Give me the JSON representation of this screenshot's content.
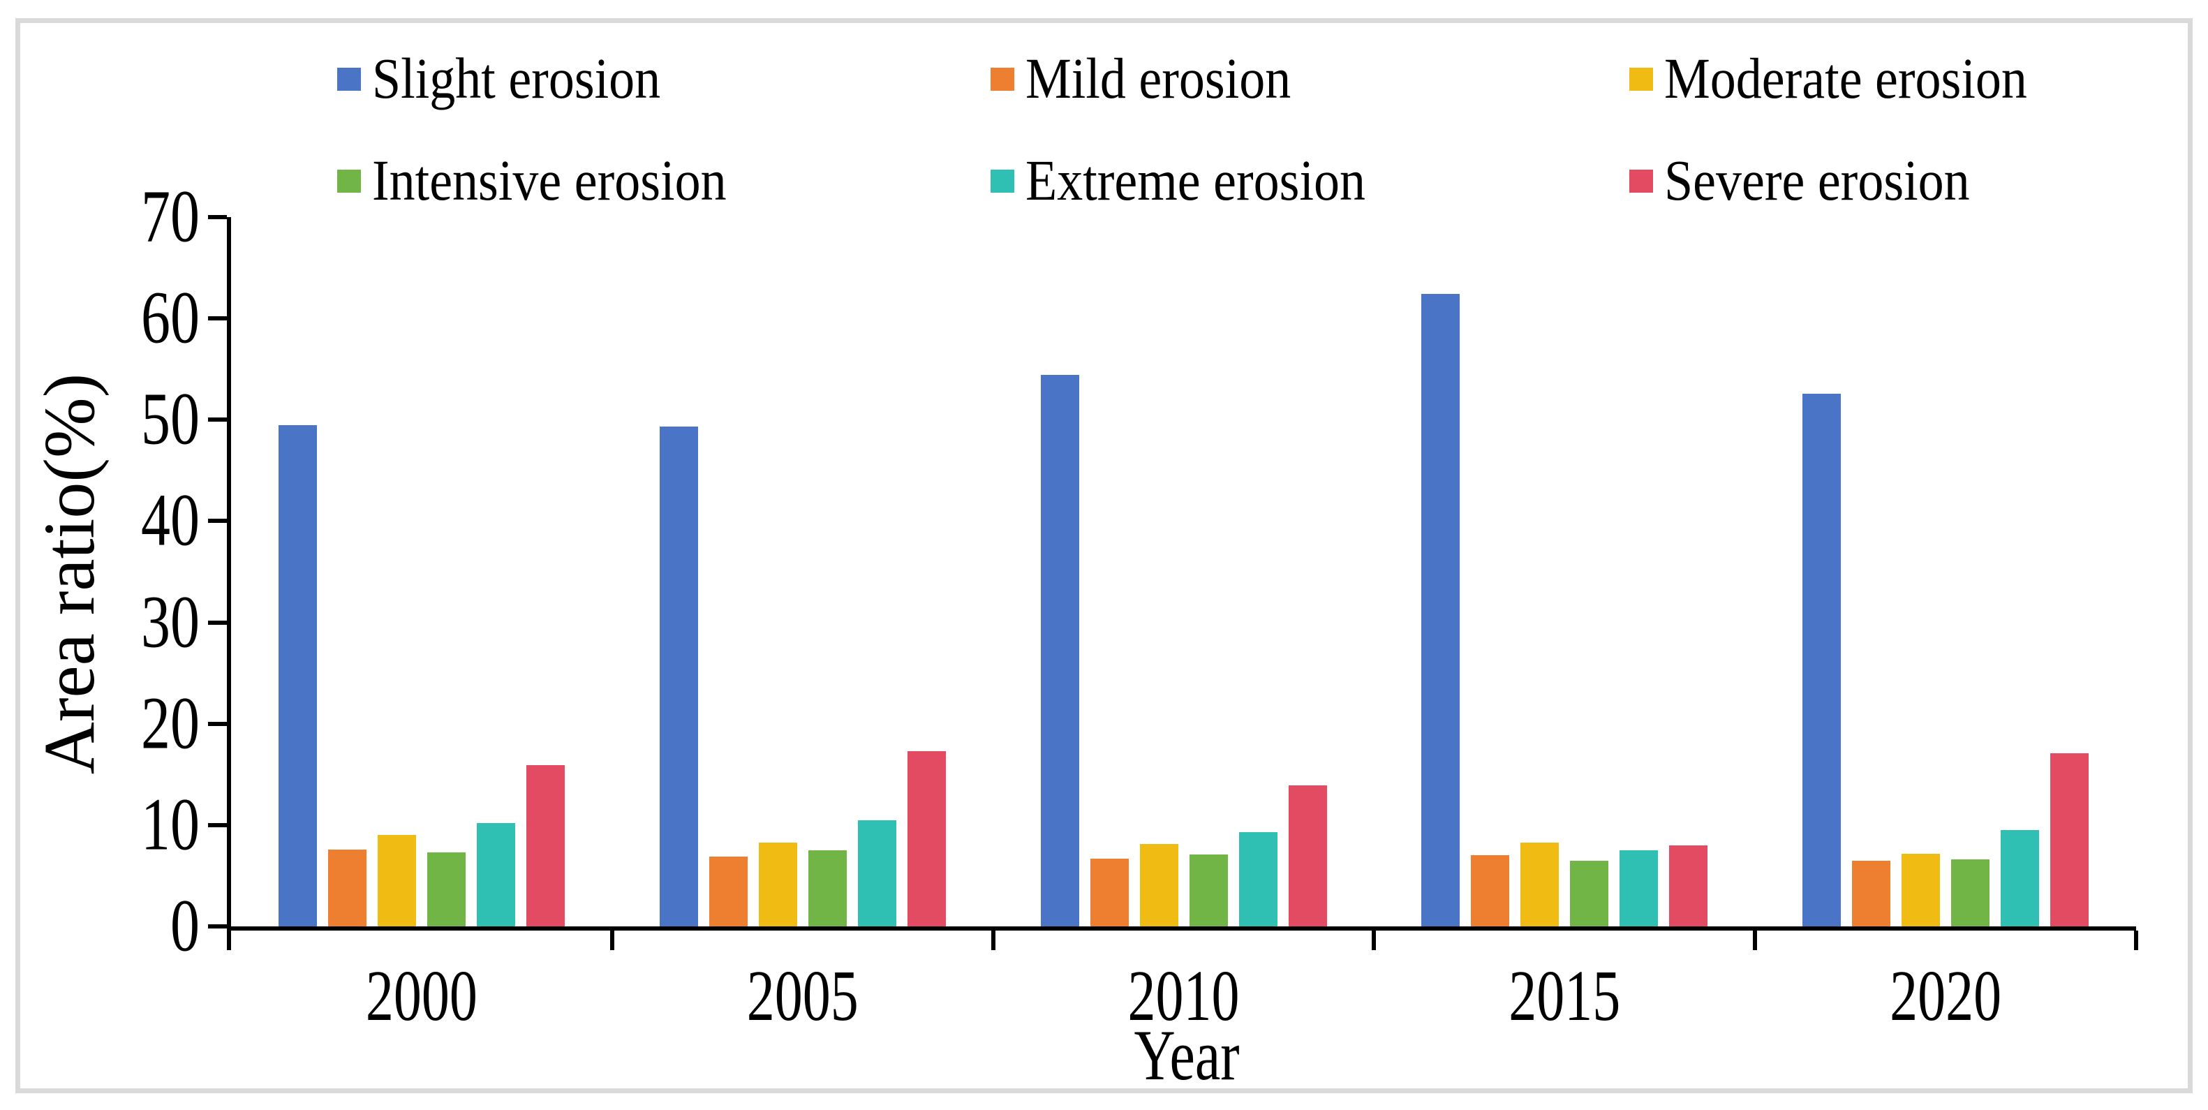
{
  "figure": {
    "background": "#ffffff",
    "frame_color": "#d9d9d9",
    "axis_color": "#000000"
  },
  "chart_data": {
    "type": "bar",
    "title": "",
    "xlabel": "Year",
    "ylabel": "Area ratio(%)",
    "categories": [
      "2000",
      "2005",
      "2010",
      "2015",
      "2020"
    ],
    "series": [
      {
        "name": "Slight erosion",
        "color": "#4A74C6",
        "values": [
          49.5,
          49.3,
          54.4,
          62.4,
          52.6
        ]
      },
      {
        "name": "Mild erosion",
        "color": "#EE7E30",
        "values": [
          7.6,
          6.9,
          6.7,
          7.0,
          6.5
        ]
      },
      {
        "name": "Moderate erosion",
        "color": "#F0BC13",
        "values": [
          9.0,
          8.3,
          8.1,
          8.3,
          7.2
        ]
      },
      {
        "name": "Intensive erosion",
        "color": "#70B546",
        "values": [
          7.3,
          7.5,
          7.1,
          6.5,
          6.6
        ]
      },
      {
        "name": "Extreme erosion",
        "color": "#2FC0B3",
        "values": [
          10.2,
          10.5,
          9.3,
          7.5,
          9.5
        ]
      },
      {
        "name": "Severe erosion",
        "color": "#E24B61",
        "values": [
          15.9,
          17.3,
          13.9,
          8.0,
          17.1
        ]
      }
    ],
    "ylim": [
      0,
      70
    ],
    "yticks": [
      0,
      10,
      20,
      30,
      40,
      50,
      60,
      70
    ],
    "grid": false,
    "legend_position": "top",
    "legend_rows": 2,
    "legend_columns": 3
  }
}
